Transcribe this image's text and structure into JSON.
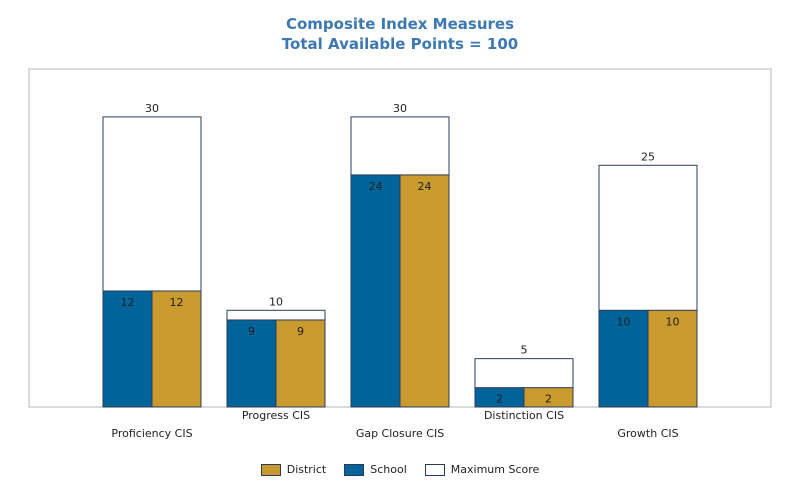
{
  "chart_data": {
    "type": "bar",
    "title": "Composite Index Measures",
    "subtitle": "Total Available Points = 100",
    "categories": [
      "Proficiency CIS",
      "Progress CIS",
      "Gap Closure CIS",
      "Distinction CIS",
      "Growth CIS"
    ],
    "series": [
      {
        "name": "School",
        "values": [
          12,
          9,
          24,
          2,
          10
        ],
        "color": "#00639a"
      },
      {
        "name": "District",
        "values": [
          12,
          9,
          24,
          2,
          10
        ],
        "color": "#c99a2e"
      },
      {
        "name": "Maximum Score",
        "values": [
          30,
          10,
          30,
          5,
          25
        ],
        "color": "#ffffff"
      }
    ],
    "ylim": [
      0,
      35
    ],
    "grid": false,
    "legend_position": "bottom",
    "legend_order": [
      "District",
      "School",
      "Maximum Score"
    ]
  }
}
